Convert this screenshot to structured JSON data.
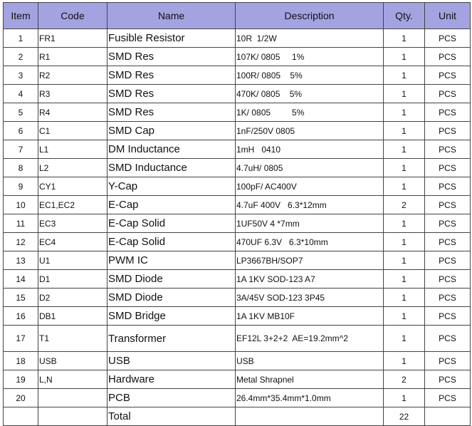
{
  "headers": {
    "item": "Item",
    "code": "Code",
    "name": "Name",
    "description": "Description",
    "qty": "Qty.",
    "unit": "Unit"
  },
  "header_color": "#a3a3e2",
  "rows": [
    {
      "item": "1",
      "code": "FR1",
      "name": "Fusible Resistor",
      "description": "10R  1/2W",
      "qty": "1",
      "unit": "PCS"
    },
    {
      "item": "2",
      "code": "R1",
      "name": "SMD Res",
      "description": "107K/ 0805     1%",
      "qty": "1",
      "unit": "PCS"
    },
    {
      "item": "3",
      "code": "R2",
      "name": "SMD Res",
      "description": "100R/ 0805    5%",
      "qty": "1",
      "unit": "PCS"
    },
    {
      "item": "4",
      "code": "R3",
      "name": "SMD Res",
      "description": "470K/ 0805    5%",
      "qty": "1",
      "unit": "PCS"
    },
    {
      "item": "5",
      "code": "R4",
      "name": "SMD Res",
      "description": "1K/ 0805         5%",
      "qty": "1",
      "unit": "PCS"
    },
    {
      "item": "6",
      "code": "C1",
      "name": "SMD Cap",
      "description": "1nF/250V 0805",
      "qty": "1",
      "unit": "PCS"
    },
    {
      "item": "7",
      "code": "L1",
      "name": "DM Inductance",
      "description": "1mH   0410",
      "qty": "1",
      "unit": "PCS"
    },
    {
      "item": "8",
      "code": "L2",
      "name": "SMD Inductance",
      "description": "4.7uH/ 0805",
      "qty": "1",
      "unit": "PCS"
    },
    {
      "item": "9",
      "code": "CY1",
      "name": "Y-Cap",
      "description": "100pF/ AC400V",
      "qty": "1",
      "unit": "PCS"
    },
    {
      "item": "10",
      "code": "EC1,EC2",
      "name": "E-Cap",
      "description": "4.7uF 400V   6.3*12mm",
      "qty": "2",
      "unit": "PCS"
    },
    {
      "item": "11",
      "code": "EC3",
      "name": "E-Cap Solid",
      "description": "1UF50V 4 *7mm",
      "qty": "1",
      "unit": "PCS"
    },
    {
      "item": "12",
      "code": "EC4",
      "name": "E-Cap Solid",
      "description": "470UF 6.3V   6.3*10mm",
      "qty": "1",
      "unit": "PCS"
    },
    {
      "item": "13",
      "code": "U1",
      "name": "PWM IC",
      "description": "LP3667BH/SOP7",
      "qty": "1",
      "unit": "PCS"
    },
    {
      "item": "14",
      "code": "D1",
      "name": "SMD Diode",
      "description": "1A 1KV SOD-123 A7",
      "qty": "1",
      "unit": "PCS"
    },
    {
      "item": "15",
      "code": "D2",
      "name": "SMD Diode",
      "description": "3A/45V SOD-123 3P45",
      "qty": "1",
      "unit": "PCS"
    },
    {
      "item": "16",
      "code": "DB1",
      "name": "SMD Bridge",
      "description": "1A 1KV MB10F",
      "qty": "1",
      "unit": "PCS"
    },
    {
      "item": "17",
      "code": "T1",
      "name": "Transformer",
      "description": "EF12L 3+2+2  AE=19.2mm^2",
      "qty": "1",
      "unit": "PCS"
    },
    {
      "item": "18",
      "code": "USB",
      "name": "USB",
      "description": "USB",
      "qty": "1",
      "unit": "PCS"
    },
    {
      "item": "19",
      "code": "L,N",
      "name": "Hardware",
      "description": "Metal Shrapnel",
      "qty": "2",
      "unit": "PCS"
    },
    {
      "item": "20",
      "code": "",
      "name": "PCB",
      "description": "26.4mm*35.4mm*1.0mm",
      "qty": "1",
      "unit": "PCS"
    }
  ],
  "total": {
    "label": "Total",
    "qty": "22"
  }
}
